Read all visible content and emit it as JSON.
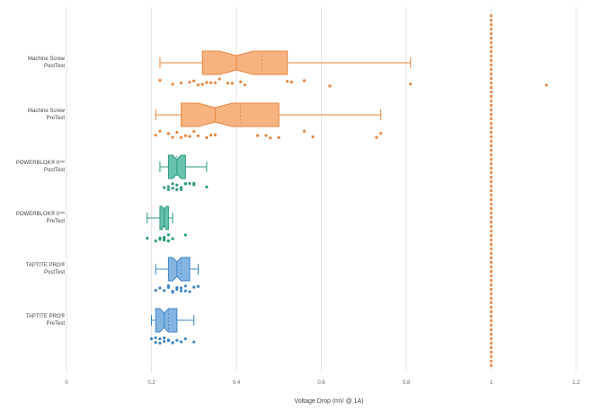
{
  "chart_data": {
    "type": "boxplot",
    "orientation": "horizontal",
    "notched": true,
    "xlabel": "Voltage Drop (mV @ 1A)",
    "xlim": [
      0,
      1.2
    ],
    "xticks": [
      {
        "value": 0,
        "label": "0"
      },
      {
        "value": 0.2,
        "label": "0.2"
      },
      {
        "value": 0.4,
        "label": "0.4"
      },
      {
        "value": 0.6,
        "label": "0.6"
      },
      {
        "value": 0.8,
        "label": "0.8"
      },
      {
        "value": 1.0,
        "label": "1"
      },
      {
        "value": 1.2,
        "label": "1.2"
      }
    ],
    "grid": true,
    "legend": "none",
    "reference_line": {
      "value": 1.0,
      "color": "#E8833A",
      "style": "dashed"
    },
    "series": [
      {
        "label_line1": "Machine Screw",
        "label_line2": "PostTest",
        "color": "#F4A66A",
        "stroke": "#E8833A",
        "whisker_low": 0.22,
        "q1": 0.32,
        "median": 0.4,
        "mean": 0.46,
        "q3": 0.52,
        "whisker_high": 0.81,
        "notch_low": 0.36,
        "notch_high": 0.44,
        "points": [
          0.22,
          0.25,
          0.27,
          0.29,
          0.3,
          0.31,
          0.32,
          0.33,
          0.34,
          0.35,
          0.36,
          0.38,
          0.39,
          0.41,
          0.42,
          0.52,
          0.53,
          0.56,
          0.62,
          0.81,
          1.13
        ]
      },
      {
        "label_line1": "Machine Screw",
        "label_line2": "PreTest",
        "color": "#F4A66A",
        "stroke": "#E8833A",
        "whisker_low": 0.21,
        "q1": 0.27,
        "median": 0.35,
        "mean": 0.41,
        "q3": 0.5,
        "whisker_high": 0.74,
        "notch_low": 0.31,
        "notch_high": 0.39,
        "points": [
          0.21,
          0.22,
          0.24,
          0.25,
          0.26,
          0.27,
          0.28,
          0.29,
          0.3,
          0.31,
          0.33,
          0.34,
          0.35,
          0.45,
          0.47,
          0.48,
          0.5,
          0.56,
          0.58,
          0.73,
          0.74
        ]
      },
      {
        "label_line1": "POWERBLOK® II™",
        "label_line2": "PostTest",
        "color": "#4DB8A0",
        "stroke": "#2A9A80",
        "whisker_low": 0.22,
        "q1": 0.24,
        "median": 0.26,
        "mean": 0.26,
        "q3": 0.28,
        "whisker_high": 0.33,
        "notch_low": 0.25,
        "notch_high": 0.27,
        "points": [
          0.23,
          0.24,
          0.24,
          0.25,
          0.25,
          0.26,
          0.26,
          0.27,
          0.27,
          0.28,
          0.28,
          0.29,
          0.3,
          0.3,
          0.33
        ]
      },
      {
        "label_line1": "POWERBLOK® II™",
        "label_line2": "PreTest",
        "color": "#4DB8A0",
        "stroke": "#2A9A80",
        "whisker_low": 0.19,
        "q1": 0.22,
        "median": 0.23,
        "mean": 0.23,
        "q3": 0.24,
        "whisker_high": 0.25,
        "notch_low": 0.225,
        "notch_high": 0.235,
        "points": [
          0.19,
          0.21,
          0.22,
          0.22,
          0.23,
          0.23,
          0.23,
          0.24,
          0.24,
          0.24,
          0.25,
          0.28
        ]
      },
      {
        "label_line1": "TAPTITE PRO®",
        "label_line2": "PostTest",
        "color": "#6FA8DC",
        "stroke": "#3D85C6",
        "whisker_low": 0.21,
        "q1": 0.24,
        "median": 0.26,
        "mean": 0.27,
        "q3": 0.29,
        "whisker_high": 0.31,
        "notch_low": 0.25,
        "notch_high": 0.27,
        "points": [
          0.21,
          0.22,
          0.23,
          0.24,
          0.24,
          0.25,
          0.25,
          0.26,
          0.26,
          0.27,
          0.27,
          0.28,
          0.28,
          0.29,
          0.3,
          0.31
        ]
      },
      {
        "label_line1": "TAPTITE PRO®",
        "label_line2": "PreTest",
        "color": "#6FA8DC",
        "stroke": "#3D85C6",
        "whisker_low": 0.2,
        "q1": 0.21,
        "median": 0.23,
        "mean": 0.24,
        "q3": 0.26,
        "whisker_high": 0.3,
        "notch_low": 0.22,
        "notch_high": 0.24,
        "points": [
          0.2,
          0.21,
          0.21,
          0.22,
          0.22,
          0.23,
          0.23,
          0.24,
          0.24,
          0.25,
          0.25,
          0.26,
          0.27,
          0.28,
          0.3
        ]
      }
    ]
  }
}
